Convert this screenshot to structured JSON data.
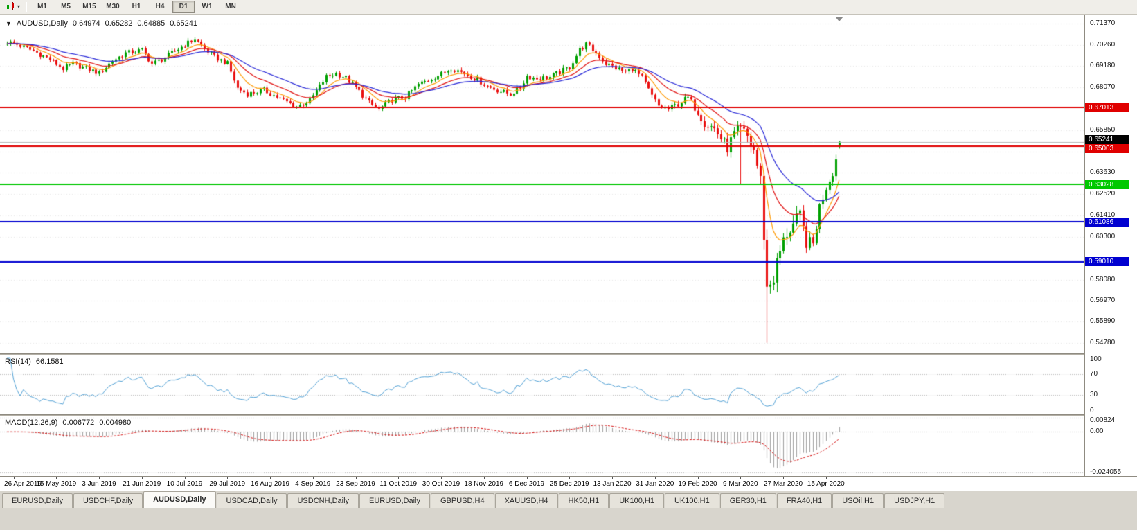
{
  "toolbar": {
    "timeframes": [
      "M1",
      "M5",
      "M15",
      "M30",
      "H1",
      "H4",
      "D1",
      "W1",
      "MN"
    ],
    "active_timeframe": "D1",
    "chart_type_icon": "candlestick-chart-icon",
    "dropdown_icon": "chevron-down-icon"
  },
  "chart_header": {
    "symbol_label": "AUDUSD,Daily",
    "open": "0.64974",
    "high": "0.65282",
    "low": "0.64885",
    "close": "0.65241"
  },
  "price_axis": {
    "ticks": [
      "0.71370",
      "0.70260",
      "0.69180",
      "0.68070",
      "0.65850",
      "0.64740",
      "0.63630",
      "0.62520",
      "0.61410",
      "0.60300",
      "0.58080",
      "0.56970",
      "0.55890",
      "0.54780"
    ]
  },
  "rsi_panel": {
    "label": "RSI(14)",
    "value": "66.1581",
    "ticks": [
      "100",
      "70",
      "30",
      "0"
    ],
    "level_lines": [
      70,
      30
    ]
  },
  "macd_panel": {
    "label": "MACD(12,26,9)",
    "value_main": "0.006772",
    "value_signal": "0.004980",
    "ticks": [
      "0.00824",
      "0.00",
      "-0.024055"
    ]
  },
  "time_axis": {
    "labels": [
      "26 Apr 2019",
      "15 May 2019",
      "3 Jun 2019",
      "21 Jun 2019",
      "10 Jul 2019",
      "29 Jul 2019",
      "16 Aug 2019",
      "4 Sep 2019",
      "23 Sep 2019",
      "11 Oct 2019",
      "30 Oct 2019",
      "18 Nov 2019",
      "6 Dec 2019",
      "25 Dec 2019",
      "13 Jan 2020",
      "31 Jan 2020",
      "19 Feb 2020",
      "9 Mar 2020",
      "27 Mar 2020",
      "15 Apr 2020"
    ],
    "first_label_candle_index": 2,
    "label_step_candles": 13
  },
  "tab_bar": {
    "tabs": [
      "EURUSD,Daily",
      "USDCHF,Daily",
      "AUDUSD,Daily",
      "USDCAD,Daily",
      "USDCNH,Daily",
      "EURUSD,Daily",
      "GBPUSD,H4",
      "XAUUSD,H4",
      "HK50,H1",
      "UK100,H1",
      "UK100,H1",
      "GER30,H1",
      "FRA40,H1",
      "USOil,H1",
      "USDJPY,H1"
    ],
    "active_index": 2
  },
  "colors": {
    "grid": "#e7e7e7",
    "current_price_line": "#b8b8b8",
    "up": "#00a000",
    "down": "#ea0f0f",
    "panel_background": "#ffffff"
  },
  "chart_data": {
    "type": "candlestick",
    "symbol": "AUDUSD",
    "timeframe": "Daily",
    "price_range": {
      "max": 0.7185,
      "min": 0.5425
    },
    "candle_count": 254,
    "current_price": 0.65241,
    "up_color": "#00a000",
    "down_color": "#ea0f0f",
    "close_anchors": [
      [
        0,
        0.7042
      ],
      [
        2,
        0.7036
      ],
      [
        8,
        0.6996
      ],
      [
        13,
        0.6952
      ],
      [
        17,
        0.6904
      ],
      [
        20,
        0.693
      ],
      [
        24,
        0.6905
      ],
      [
        28,
        0.688
      ],
      [
        32,
        0.6945
      ],
      [
        36,
        0.6985
      ],
      [
        41,
        0.7
      ],
      [
        44,
        0.693
      ],
      [
        47,
        0.6952
      ],
      [
        50,
        0.6985
      ],
      [
        54,
        0.7028
      ],
      [
        57,
        0.7058
      ],
      [
        60,
        0.7008
      ],
      [
        63,
        0.6965
      ],
      [
        67,
        0.693
      ],
      [
        70,
        0.6802
      ],
      [
        73,
        0.6772
      ],
      [
        78,
        0.6792
      ],
      [
        83,
        0.6748
      ],
      [
        88,
        0.6706
      ],
      [
        92,
        0.6738
      ],
      [
        97,
        0.6862
      ],
      [
        100,
        0.688
      ],
      [
        103,
        0.6856
      ],
      [
        106,
        0.6806
      ],
      [
        110,
        0.6726
      ],
      [
        113,
        0.6692
      ],
      [
        117,
        0.6742
      ],
      [
        121,
        0.6756
      ],
      [
        125,
        0.6822
      ],
      [
        129,
        0.6852
      ],
      [
        132,
        0.6876
      ],
      [
        135,
        0.6908
      ],
      [
        139,
        0.688
      ],
      [
        143,
        0.6846
      ],
      [
        146,
        0.6812
      ],
      [
        150,
        0.6786
      ],
      [
        153,
        0.6772
      ],
      [
        156,
        0.6806
      ],
      [
        158,
        0.6866
      ],
      [
        161,
        0.6852
      ],
      [
        165,
        0.686
      ],
      [
        168,
        0.6886
      ],
      [
        171,
        0.6912
      ],
      [
        174,
        0.7002
      ],
      [
        176,
        0.703
      ],
      [
        179,
        0.6986
      ],
      [
        182,
        0.693
      ],
      [
        185,
        0.6908
      ],
      [
        188,
        0.6886
      ],
      [
        190,
        0.6906
      ],
      [
        193,
        0.6856
      ],
      [
        196,
        0.6762
      ],
      [
        198,
        0.671
      ],
      [
        201,
        0.6692
      ],
      [
        204,
        0.6722
      ],
      [
        207,
        0.6752
      ],
      [
        210,
        0.668
      ],
      [
        212,
        0.6622
      ],
      [
        215,
        0.6592
      ],
      [
        217,
        0.6542
      ],
      [
        219,
        0.6492
      ],
      [
        221,
        0.6562
      ],
      [
        223,
        0.6582
      ],
      [
        225,
        0.6548
      ],
      [
        227,
        0.6482
      ],
      [
        229,
        0.6322
      ],
      [
        231,
        0.5762
      ],
      [
        233,
        0.5822
      ],
      [
        235,
        0.5952
      ],
      [
        237,
        0.6052
      ],
      [
        239,
        0.6092
      ],
      [
        241,
        0.6136
      ],
      [
        243,
        0.6002
      ],
      [
        245,
        0.5992
      ],
      [
        247,
        0.6186
      ],
      [
        249,
        0.6292
      ],
      [
        251,
        0.6368
      ],
      [
        252,
        0.6432
      ],
      [
        253,
        0.65241
      ]
    ],
    "volatility_anchors": [
      [
        0,
        0.0013
      ],
      [
        200,
        0.0015
      ],
      [
        210,
        0.0022
      ],
      [
        218,
        0.0028
      ],
      [
        224,
        0.004
      ],
      [
        228,
        0.005
      ],
      [
        234,
        0.0052
      ],
      [
        240,
        0.004
      ],
      [
        246,
        0.003
      ],
      [
        253,
        0.0024
      ]
    ],
    "special_candles": [
      {
        "index": 223,
        "low": 0.63
      },
      {
        "index": 231,
        "low": 0.548
      },
      {
        "index": 253,
        "open": 0.64974,
        "high": 0.65282,
        "low": 0.64885,
        "close": 0.65241
      }
    ],
    "horizontal_lines": [
      {
        "price": 0.67013,
        "color": "#e00000",
        "width": 2
      },
      {
        "price": 0.65003,
        "color": "#e00000",
        "width": 2
      },
      {
        "price": 0.63028,
        "color": "#00c800",
        "width": 2
      },
      {
        "price": 0.61086,
        "color": "#0000d0",
        "width": 2
      },
      {
        "price": 0.5901,
        "color": "#0000d0",
        "width": 2
      }
    ],
    "moving_averages": [
      {
        "period": 8,
        "method": "ema",
        "color": "#ff9900"
      },
      {
        "period": 17,
        "method": "ema",
        "color": "#e11010"
      },
      {
        "period": 32,
        "method": "ema",
        "color": "#2828d8"
      }
    ],
    "rsi": {
      "period": 14,
      "color": "#53a2d6",
      "range": [
        0,
        100
      ]
    },
    "macd": {
      "fast": 12,
      "slow": 26,
      "signal": 9,
      "histogram_color": "#a0a0a0",
      "signal_color": "#d61010",
      "range_max": 0.0095,
      "range_min": -0.0255
    }
  }
}
